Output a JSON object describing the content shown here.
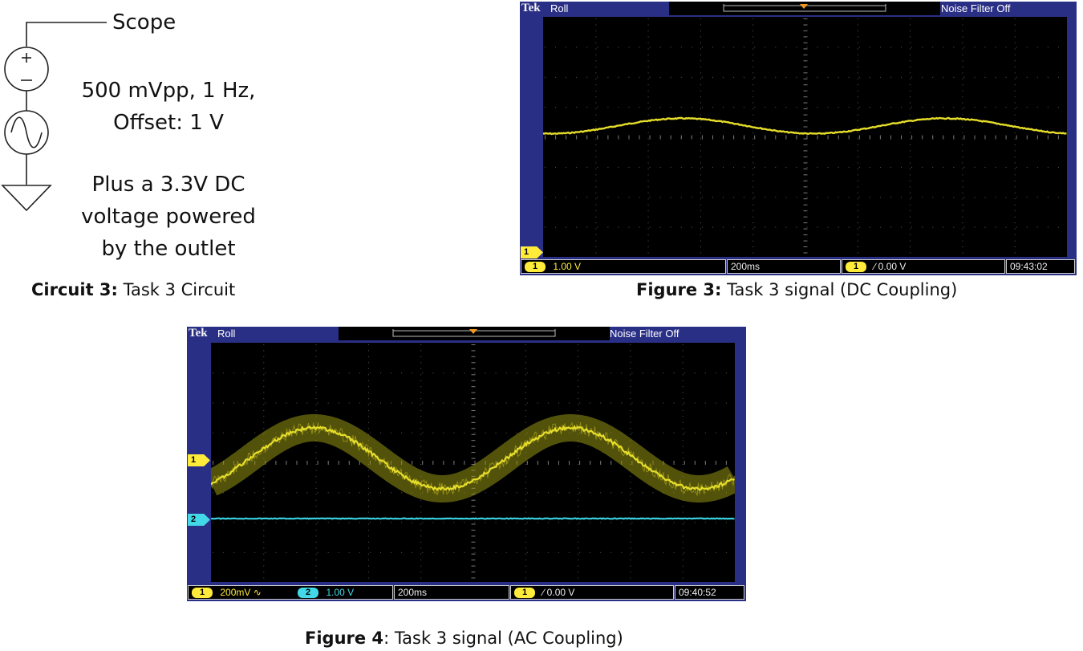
{
  "circuit": {
    "scope_label": "Scope",
    "source_params_line1": "500 mVpp, 1 Hz,",
    "source_params_line2": "Offset: 1 V",
    "dc_note_line1": "Plus a 3.3V DC",
    "dc_note_line2": "voltage powered",
    "dc_note_line3": "by the outlet",
    "caption_bold": "Circuit 3:",
    "caption_text": " Task 3 Circuit"
  },
  "figure3": {
    "brand": "Tek",
    "mode": "Roll",
    "noise_filter": "Noise Filter Off",
    "ch1_marker": "1",
    "ch1_chip": "1",
    "ch1_scale": "1.00 V",
    "timebase": "200ms",
    "trigger_chip": "1",
    "trigger_level": "∕ 0.00 V",
    "clock": "09:43:02",
    "caption_bold": "Figure 3:",
    "caption_text": " Task 3 signal (DC Coupling)"
  },
  "figure4": {
    "brand": "Tek",
    "mode": "Roll",
    "noise_filter": "Noise Filter Off",
    "ch1_marker": "1",
    "ch2_marker": "2",
    "ch1_chip": "1",
    "ch1_scale": "200mV ∿",
    "ch2_chip": "2",
    "ch2_scale": "1.00 V",
    "timebase": "200ms",
    "trigger_chip": "1",
    "trigger_level": "∕ 0.00 V",
    "clock": "09:40:52",
    "caption_bold": "Figure 4",
    "caption_text": ": Task 3 signal (AC Coupling)"
  },
  "colors": {
    "scope_frame": "#2a2f86",
    "trace_ch1": "#e6de2a",
    "trace_ch2": "#39d0df",
    "chip_yellow": "#ffec3a",
    "chip_cyan": "#43d8e8"
  },
  "icons": [
    "voltage-source-icon",
    "sine-source-icon",
    "ground-icon",
    "trigger-marker-icon",
    "ac-coupling-icon"
  ]
}
